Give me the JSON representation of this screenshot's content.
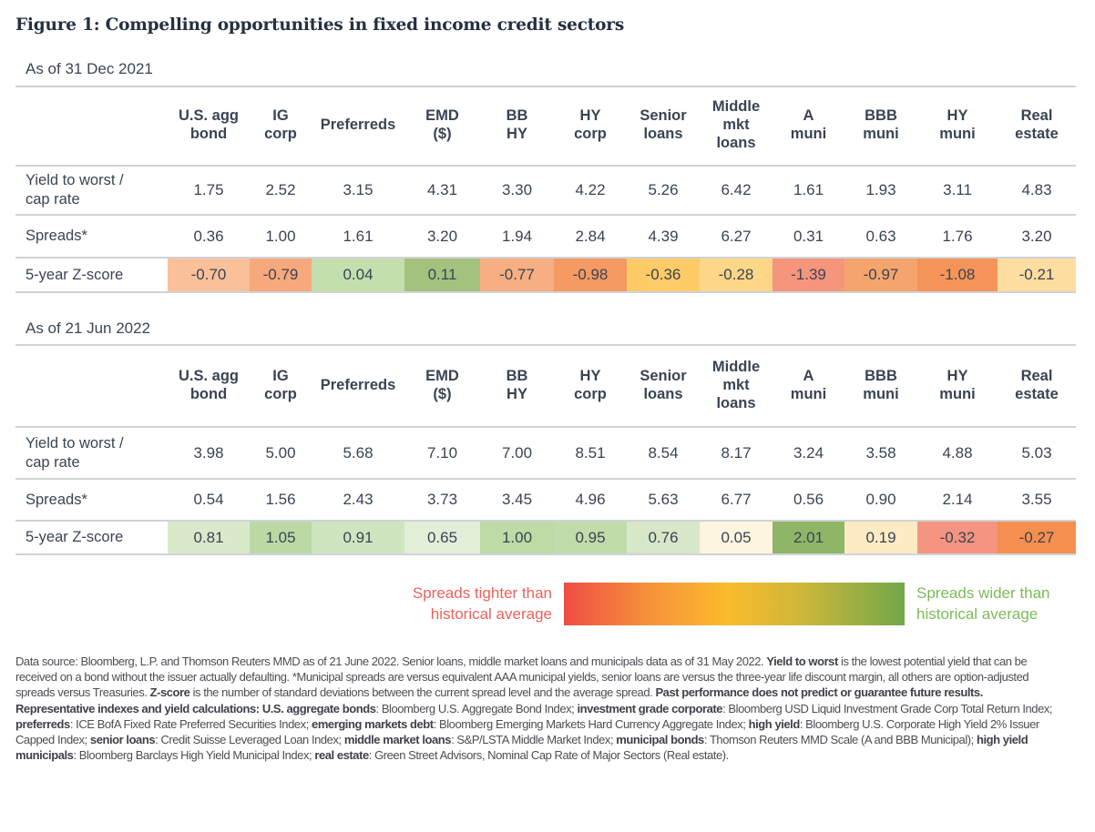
{
  "figure_title": "Figure 1: Compelling opportunities in fixed income credit sectors",
  "chart_data": {
    "type": "table",
    "title": "Figure 1: Compelling opportunities in fixed income credit sectors",
    "columns": [
      "U.S. agg bond",
      "IG corp",
      "Preferreds",
      "EMD ($)",
      "BB HY",
      "HY corp",
      "Senior loans",
      "Middle mkt loans",
      "A muni",
      "BBB muni",
      "HY muni",
      "Real estate"
    ],
    "column_header_lines": [
      [
        "U.S. agg",
        "bond"
      ],
      [
        "IG",
        "corp"
      ],
      [
        "Preferreds"
      ],
      [
        "EMD",
        "($)"
      ],
      [
        "BB",
        "HY"
      ],
      [
        "HY",
        "corp"
      ],
      [
        "Senior",
        "loans"
      ],
      [
        "Middle",
        "mkt",
        "loans"
      ],
      [
        "A",
        "muni"
      ],
      [
        "BBB",
        "muni"
      ],
      [
        "HY",
        "muni"
      ],
      [
        "Real",
        "estate"
      ]
    ],
    "row_labels": {
      "yield": [
        "Yield to worst /",
        "cap rate"
      ],
      "spreads": "Spreads*",
      "zscore": "5-year Z-score"
    },
    "tables": [
      {
        "as_of": "As of 31 Dec 2021",
        "yield": [
          "1.75",
          "2.52",
          "3.15",
          "4.31",
          "3.30",
          "4.22",
          "5.26",
          "6.42",
          "1.61",
          "1.93",
          "3.11",
          "4.83"
        ],
        "spreads": [
          "0.36",
          "1.00",
          "1.61",
          "3.20",
          "1.94",
          "2.84",
          "4.39",
          "6.27",
          "0.31",
          "0.63",
          "1.76",
          "3.20"
        ],
        "zscore": [
          "-0.70",
          "-0.79",
          "0.04",
          "0.11",
          "-0.77",
          "-0.98",
          "-0.36",
          "-0.28",
          "-1.39",
          "-0.97",
          "-1.08",
          "-0.21"
        ],
        "zscore_colors": [
          "#f9c09a",
          "#f6a97c",
          "#c4dfae",
          "#a2c27e",
          "#f6ae82",
          "#f59a62",
          "#fdcb68",
          "#fdd687",
          "#f5957c",
          "#f6a46e",
          "#f59458",
          "#feddA0"
        ]
      },
      {
        "as_of": "As of 21 Jun 2022",
        "yield": [
          "3.98",
          "5.00",
          "5.68",
          "7.10",
          "7.00",
          "8.51",
          "8.54",
          "8.17",
          "3.24",
          "3.58",
          "4.88",
          "5.03"
        ],
        "spreads": [
          "0.54",
          "1.56",
          "2.43",
          "3.73",
          "3.45",
          "4.96",
          "5.63",
          "6.77",
          "0.56",
          "0.90",
          "2.14",
          "3.55"
        ],
        "zscore": [
          "0.81",
          "1.05",
          "0.91",
          "0.65",
          "1.00",
          "0.95",
          "0.76",
          "0.05",
          "2.01",
          "0.19",
          "-0.32",
          "-0.27"
        ],
        "zscore_colors": [
          "#d9eacb",
          "#bcd9a4",
          "#cfe5bf",
          "#e2eed7",
          "#bedba6",
          "#c1dcaa",
          "#d6e8c8",
          "#fdf5df",
          "#8fb667",
          "#feebc4",
          "#f59480",
          "#f58f4f"
        ]
      }
    ]
  },
  "legend": {
    "left_label_lines": [
      "Spreads tighter than",
      "historical average"
    ],
    "right_label_lines": [
      "Spreads wider than",
      "historical average"
    ],
    "gradient_colors": [
      "#ef4d44",
      "#fbbb2c",
      "#71a74a"
    ]
  },
  "footnote": [
    {
      "t": "Data source: Bloomberg, L.P. and Thomson Reuters MMD as of 21 June 2022. Senior loans, middle market loans and municipals data as of 31 May 2022. ",
      "b": false
    },
    {
      "t": "Yield to worst",
      "b": true
    },
    {
      "t": " is the lowest potential yield that can be received on a bond without the issuer actually defaulting. *Municipal spreads are versus equivalent AAA municipal yields, senior loans are versus the three-year life discount margin, all others are option-adjusted spreads versus Treasuries. ",
      "b": false
    },
    {
      "t": "Z-score",
      "b": true
    },
    {
      "t": " is the number of standard deviations between the current spread level and the average spread. ",
      "b": false
    },
    {
      "t": "Past performance does not predict or guarantee future results. Representative indexes and yield calculations: U.S. aggregate bonds",
      "b": true
    },
    {
      "t": ": Bloomberg U.S. Aggregate Bond Index; ",
      "b": false
    },
    {
      "t": "investment grade corporate",
      "b": true
    },
    {
      "t": ": Bloomberg USD Liquid Investment Grade Corp Total Return Index; ",
      "b": false
    },
    {
      "t": "preferreds",
      "b": true
    },
    {
      "t": ": ICE BofA Fixed Rate Preferred Securities Index; ",
      "b": false
    },
    {
      "t": "emerging markets debt",
      "b": true
    },
    {
      "t": ": Bloomberg Emerging Markets Hard Currency Aggregate Index; ",
      "b": false
    },
    {
      "t": "high yield",
      "b": true
    },
    {
      "t": ": Bloomberg U.S. Corporate High Yield 2% Issuer Capped Index; ",
      "b": false
    },
    {
      "t": "senior loans",
      "b": true
    },
    {
      "t": ": Credit Suisse Leveraged Loan Index; ",
      "b": false
    },
    {
      "t": "middle market loans",
      "b": true
    },
    {
      "t": ": S&P/LSTA Middle Market Index; ",
      "b": false
    },
    {
      "t": "municipal bonds",
      "b": true
    },
    {
      "t": ": Thomson Reuters MMD Scale (A and BBB Municipal); ",
      "b": false
    },
    {
      "t": "high yield municipals",
      "b": true
    },
    {
      "t": ": Bloomberg Barclays High Yield Municipal Index; ",
      "b": false
    },
    {
      "t": "real estate",
      "b": true
    },
    {
      "t": ": Green Street Advisors, Nominal Cap Rate of Major Sectors (Real estate).",
      "b": false
    }
  ]
}
